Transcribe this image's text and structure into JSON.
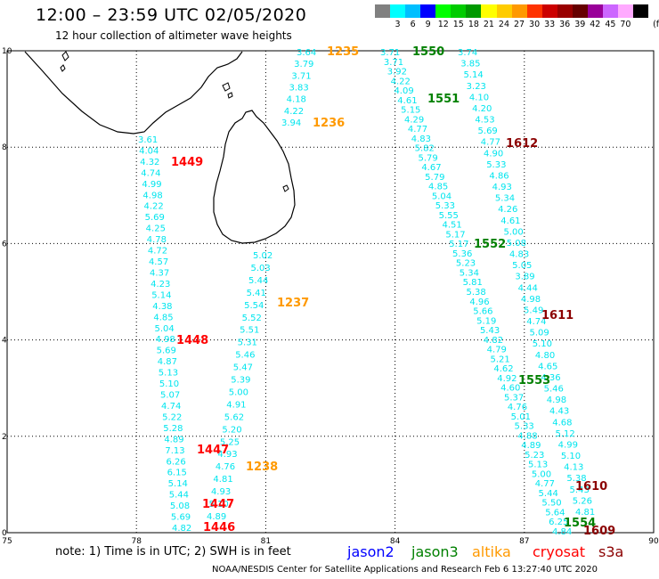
{
  "title": "12:00 – 23:59 UTC 02/05/2020",
  "subtitle": "12 hour collection of altimeter wave heights",
  "legend": {
    "unit_label": "(ft)",
    "levels": [
      {
        "label": "",
        "color": "#808080"
      },
      {
        "label": "3",
        "color": "#00ffff"
      },
      {
        "label": "6",
        "color": "#00bfff"
      },
      {
        "label": "9",
        "color": "#0000ff"
      },
      {
        "label": "12",
        "color": "#00ff00"
      },
      {
        "label": "15",
        "color": "#00cc00"
      },
      {
        "label": "18",
        "color": "#009900"
      },
      {
        "label": "21",
        "color": "#ffff00"
      },
      {
        "label": "24",
        "color": "#ffcc00"
      },
      {
        "label": "27",
        "color": "#ff9900"
      },
      {
        "label": "30",
        "color": "#ff3300"
      },
      {
        "label": "33",
        "color": "#cc0000"
      },
      {
        "label": "36",
        "color": "#990000"
      },
      {
        "label": "39",
        "color": "#660000"
      },
      {
        "label": "42",
        "color": "#990099"
      },
      {
        "label": "45",
        "color": "#cc66ff"
      },
      {
        "label": "70",
        "color": "#ffaaff"
      },
      {
        "label": "",
        "color": "#000000"
      }
    ]
  },
  "axes": {
    "x_ticks": [
      "75",
      "78",
      "81",
      "84",
      "87",
      "90"
    ],
    "y_ticks": [
      "10",
      "8",
      "6",
      "4",
      "2",
      "0"
    ],
    "xlim": [
      75,
      90
    ],
    "ylim": [
      0,
      10
    ]
  },
  "tracks": [
    {
      "id": "t1446",
      "label_color": "#ff0000",
      "lon_start": 78.85,
      "lon_end": 78.85,
      "lat_start": 0.0,
      "lat_end": 0.0,
      "values": [],
      "pass_labels": [
        {
          "text": "1446",
          "lon": 79.45,
          "lat": 0.03
        },
        {
          "text": "1447",
          "lon": 79.4,
          "lat": 0.45
        },
        {
          "text": "1447",
          "lon": 79.35,
          "lat": 1.5
        },
        {
          "text": "1448",
          "lon": 79.0,
          "lat": 3.96
        },
        {
          "text": "1449",
          "lon": 78.55,
          "lat": 7.8
        }
      ]
    },
    {
      "id": "cryosat",
      "color": "#ff0000"
    },
    {
      "id": "s3a",
      "color": "#8b0000"
    }
  ],
  "west_track_values": [
    "4.82",
    "5.69",
    "5.08",
    "5.44",
    "5.14",
    "6.15",
    "6.26",
    "7.13",
    "4.89",
    "5.28",
    "5.22",
    "4.74",
    "5.07",
    "5.10",
    "5.13",
    "4.87",
    "5.69",
    "4.98",
    "5.04",
    "4.85",
    "4.38",
    "5.14",
    "4.23",
    "4.37",
    "4.57",
    "4.72",
    "4.78",
    "4.25",
    "5.69",
    "4.22",
    "4.98",
    "4.99",
    "4.74",
    "4.32",
    "4.04",
    "3.61"
  ],
  "mid_track_values": [
    "4.89",
    "5.10",
    "4.93",
    "4.81",
    "4.76",
    "4.93",
    "5.25",
    "5.20",
    "5.62",
    "4.91",
    "5.00",
    "5.39",
    "5.47",
    "5.46",
    "5.31",
    "5.51",
    "5.52",
    "5.54",
    "5.41",
    "5.44",
    "5.03",
    "5.02"
  ],
  "north_track_values": [
    "3.64",
    "3.79",
    "3.71",
    "3.83",
    "4.18",
    "4.22",
    "3.94"
  ],
  "jason3_track_values": [
    "3.71",
    "3.71",
    "3.92",
    "4.22",
    "4.09",
    "4.61",
    "5.15",
    "4.29",
    "4.77",
    "4.83",
    "5.82",
    "5.79",
    "4.67",
    "5.79",
    "4.85",
    "5.04",
    "5.33",
    "5.55",
    "4.51",
    "5.17",
    "5.17",
    "5.36",
    "5.23",
    "5.34",
    "5.81",
    "5.38",
    "4.96",
    "5.66",
    "5.19",
    "5.43",
    "4.82",
    "4.79",
    "5.21",
    "4.62",
    "4.92",
    "4.60",
    "5.37",
    "4.76",
    "5.01",
    "5.33",
    "4.88",
    "4.89",
    "5.23",
    "5.13",
    "5.00",
    "4.77",
    "5.44",
    "5.50",
    "5.64",
    "6.25",
    "4.84"
  ],
  "east_track_values": [
    "3.74",
    "3.85",
    "5.14",
    "3.23",
    "4.10",
    "4.20",
    "4.53",
    "5.69",
    "4.77",
    "4.90",
    "5.33",
    "4.86",
    "4.93",
    "5.34",
    "4.26",
    "4.61",
    "5.00",
    "5.08",
    "4.83",
    "5.05",
    "3.89",
    "4.44",
    "4.98",
    "5.49",
    "4.74",
    "5.09",
    "5.10",
    "4.80",
    "4.65",
    "4.36",
    "5.46",
    "4.98",
    "4.43",
    "4.68",
    "5.12",
    "4.99",
    "5.10",
    "4.13",
    "5.38",
    "5.43",
    "5.26",
    "4.81"
  ],
  "pass_labels": [
    {
      "text": "1235",
      "color": "#ff9900"
    },
    {
      "text": "1236",
      "color": "#ff9900"
    },
    {
      "text": "1237",
      "color": "#ff9900"
    },
    {
      "text": "1238",
      "color": "#ff9900"
    },
    {
      "text": "1550",
      "color": "#008000"
    },
    {
      "text": "1551",
      "color": "#008000"
    },
    {
      "text": "1552",
      "color": "#008000"
    },
    {
      "text": "1553",
      "color": "#008000"
    },
    {
      "text": "1554",
      "color": "#008000"
    },
    {
      "text": "1612",
      "color": "#8b0000"
    },
    {
      "text": "1611",
      "color": "#8b0000"
    },
    {
      "text": "1610",
      "color": "#8b0000"
    },
    {
      "text": "1609",
      "color": "#8b0000"
    },
    {
      "text": "1446",
      "color": "#ff0000"
    },
    {
      "text": "1447",
      "color": "#ff0000"
    },
    {
      "text": "1447",
      "color": "#ff0000"
    },
    {
      "text": "1448",
      "color": "#ff0000"
    },
    {
      "text": "1449",
      "color": "#ff0000"
    }
  ],
  "note": "note:  1) Time is in UTC;  2) SWH is in feet",
  "satellites": [
    {
      "name": "jason2",
      "color": "#0000ff"
    },
    {
      "name": "jason3",
      "color": "#008000"
    },
    {
      "name": "altika",
      "color": "#ff9900"
    },
    {
      "name": "cryosat",
      "color": "#ff0000"
    },
    {
      "name": "s3a",
      "color": "#8b0000"
    }
  ],
  "credit": "NOAA/NESDIS Center for Satellite Applications and Research    Feb  6 13:27:40 UTC 2020",
  "colors": {
    "track_text": "#00e5ee",
    "grid": "#000000",
    "coast": "#000000"
  }
}
